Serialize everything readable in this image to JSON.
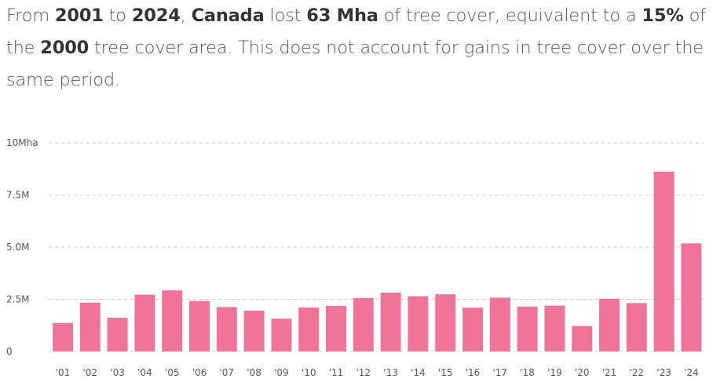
{
  "summary": {
    "t1": "From ",
    "start_year": "2001",
    "t2": " to ",
    "end_year": "2024",
    "t3": ", ",
    "country": "Canada",
    "t4": " lost ",
    "loss_amount": "63 Mha",
    "t5": " of tree cover, equivalent to a ",
    "percent": "15%",
    "t6": " of the ",
    "baseline_year": "2000",
    "t7": " tree cover area. This does not account for gains in tree cover over the same period."
  },
  "colors": {
    "bar": "#f07499",
    "grid": "#cccccc",
    "axis_text": "#555555"
  },
  "chart_data": {
    "type": "bar",
    "categories": [
      "'01",
      "'02",
      "'03",
      "'04",
      "'05",
      "'06",
      "'07",
      "'08",
      "'09",
      "'10",
      "'11",
      "'12",
      "'13",
      "'14",
      "'15",
      "'16",
      "'17",
      "'18",
      "'19",
      "'20",
      "'21",
      "'22",
      "'23",
      "'24"
    ],
    "values": [
      1.37,
      2.34,
      1.62,
      2.72,
      2.93,
      2.42,
      2.13,
      1.96,
      1.57,
      2.11,
      2.18,
      2.56,
      2.82,
      2.65,
      2.74,
      2.1,
      2.58,
      2.15,
      2.2,
      1.22,
      2.53,
      2.32,
      8.62,
      5.18
    ],
    "ylim": [
      0,
      10
    ],
    "yticks": [
      0,
      2.5,
      5,
      7.5,
      10
    ],
    "ytick_labels": [
      "0",
      "2.5M",
      "5.0M",
      "7.5M",
      "10Mha"
    ],
    "grid": true,
    "title": "",
    "xlabel": "",
    "ylabel": ""
  }
}
